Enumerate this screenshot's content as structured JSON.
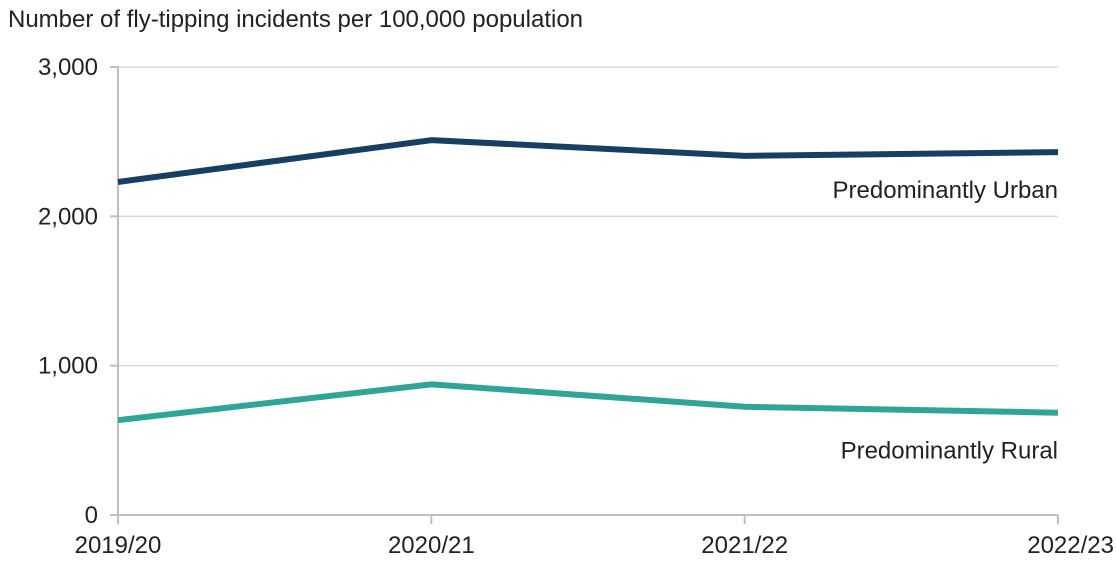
{
  "chart_data": {
    "type": "line",
    "title": "Number of fly-tipping incidents per 100,000 population",
    "xlabel": "",
    "ylabel": "",
    "categories": [
      "2019/20",
      "2020/21",
      "2021/22",
      "2022/23"
    ],
    "ylim": [
      0,
      3000
    ],
    "yticks": [
      0,
      1000,
      2000,
      3000
    ],
    "ytick_labels": [
      "0",
      "1,000",
      "2,000",
      "3,000"
    ],
    "grid": "horizontal",
    "legend": "none",
    "series": [
      {
        "name": "Predominantly Urban",
        "color": "#173f63",
        "values": [
          2230,
          2510,
          2405,
          2430
        ]
      },
      {
        "name": "Predominantly Rural",
        "color": "#2ea596",
        "values": [
          635,
          875,
          725,
          685
        ]
      }
    ]
  }
}
